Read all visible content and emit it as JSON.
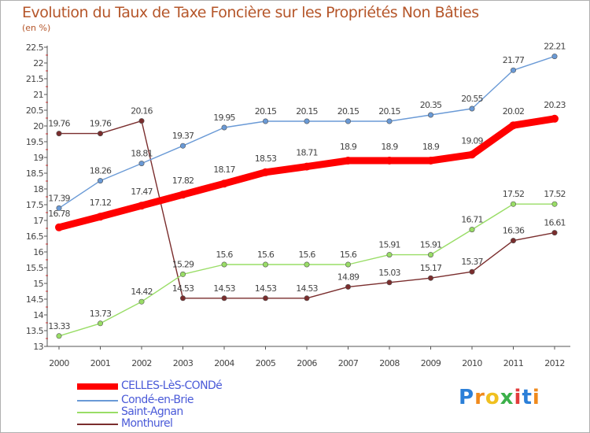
{
  "header": {
    "title": "Evolution du Taux de Taxe Foncière sur les Propriétés Non Bâties",
    "unit": "(en %)"
  },
  "chart_data": {
    "type": "line",
    "title": "Evolution du Taux de Taxe Foncière sur les Propriétés Non Bâties",
    "ylabel": "(en %)",
    "xlabel": "",
    "categories": [
      "2000",
      "2001",
      "2002",
      "2003",
      "2004",
      "2005",
      "2006",
      "2007",
      "2008",
      "2009",
      "2010",
      "2011",
      "2012"
    ],
    "ylim": [
      13,
      22.5
    ],
    "yticks": [
      "13",
      "13.5",
      "14",
      "14.5",
      "15",
      "15.5",
      "16",
      "16.5",
      "17",
      "17.5",
      "18",
      "18.5",
      "19",
      "19.5",
      "20",
      "20.5",
      "21",
      "21.5",
      "22",
      "22.5"
    ],
    "series": [
      {
        "name": "CELLES-LèS-CONDé",
        "color": "#ff0000",
        "values": [
          16.78,
          17.12,
          17.47,
          17.82,
          18.17,
          18.53,
          18.71,
          18.9,
          18.9,
          18.9,
          19.09,
          20.02,
          20.23
        ],
        "labels": [
          "16.78",
          "17.12",
          "17.47",
          "17.82",
          "18.17",
          "18.53",
          "18.71",
          "18.9",
          "18.9",
          "18.9",
          "19.09",
          "20.02",
          "20.23"
        ]
      },
      {
        "name": "Condé-en-Brie",
        "color": "#6a9ad6",
        "values": [
          17.39,
          18.26,
          18.81,
          19.37,
          19.95,
          20.15,
          20.15,
          20.15,
          20.15,
          20.35,
          20.55,
          21.77,
          22.21
        ],
        "labels": [
          "17.39",
          "18.26",
          "18.81",
          "19.37",
          "19.95",
          "20.15",
          "20.15",
          "20.15",
          "20.15",
          "20.35",
          "20.55",
          "21.77",
          "22.21"
        ]
      },
      {
        "name": "Saint-Agnan",
        "color": "#99dd66",
        "values": [
          13.33,
          13.73,
          14.42,
          15.29,
          15.6,
          15.6,
          15.6,
          15.6,
          15.91,
          15.91,
          16.71,
          17.52,
          17.52
        ],
        "labels": [
          "13.33",
          "13.73",
          "14.42",
          "15.29",
          "15.6",
          "15.6",
          "15.6",
          "15.6",
          "15.91",
          "15.91",
          "16.71",
          "17.52",
          "17.52"
        ]
      },
      {
        "name": "Monthurel",
        "color": "#7a2d2d",
        "values": [
          19.76,
          19.76,
          20.16,
          14.53,
          14.53,
          14.53,
          14.53,
          14.89,
          15.03,
          15.17,
          15.37,
          16.36,
          16.61
        ],
        "labels": [
          "19.76",
          "19.76",
          "20.16",
          "14.53",
          "14.53",
          "14.53",
          "14.53",
          "14.89",
          "15.03",
          "15.17",
          "15.37",
          "16.36",
          "16.61"
        ]
      }
    ],
    "legend": "bottom-left",
    "grid": false
  },
  "legend": {
    "items": [
      {
        "label": "CELLES-LèS-CONDé",
        "color": "#ff0000"
      },
      {
        "label": "Condé-en-Brie",
        "color": "#6a9ad6"
      },
      {
        "label": "Saint-Agnan",
        "color": "#99dd66"
      },
      {
        "label": "Monthurel",
        "color": "#7a2d2d"
      }
    ]
  },
  "logo": {
    "letters": [
      "P",
      "r",
      "o",
      "x",
      "i",
      "t",
      "i"
    ],
    "colors": [
      "#2b7fd8",
      "#f08a1c",
      "#f0c020",
      "#3bb04a",
      "#e23b3b",
      "#2b7fd8",
      "#f08a1c"
    ]
  }
}
